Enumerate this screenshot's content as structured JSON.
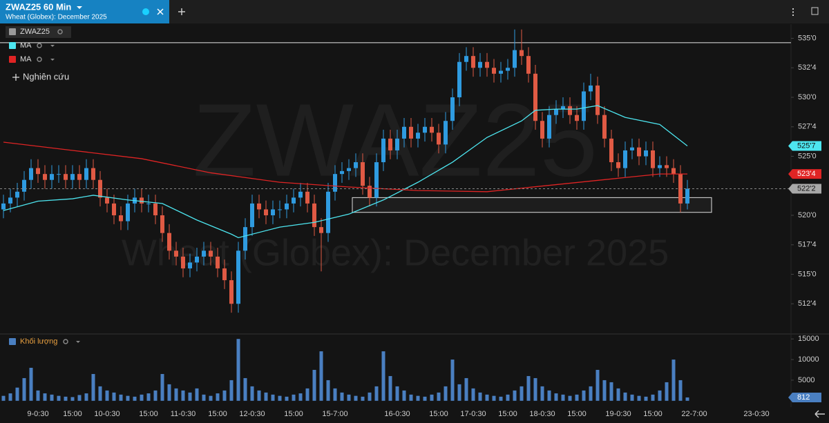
{
  "ui": {
    "tab_title": "ZWAZ25 60 Min",
    "tab_subtitle": "Wheat (Globex): December 2025",
    "study_button": "Nghiên cứu"
  },
  "chart_data": [
    {
      "type": "candlestick",
      "name": "ZWAZ25",
      "categories": [
        null,
        null,
        null,
        null,
        null,
        "9-0:30",
        null,
        null,
        null,
        null,
        "15:00",
        null,
        null,
        null,
        null,
        "10-0:30",
        null,
        null,
        null,
        null,
        null,
        "15:00",
        null,
        null,
        null,
        null,
        "11-0:30",
        null,
        null,
        null,
        null,
        "15:00",
        null,
        null,
        null,
        null,
        "12-0:30",
        null,
        null,
        null,
        null,
        null,
        "15:00",
        null,
        null,
        null,
        null,
        null,
        "15-7:00",
        null,
        null,
        null,
        null,
        null,
        null,
        null,
        null,
        "16-0:30",
        null,
        null,
        null,
        null,
        null,
        "15:00",
        null,
        null,
        null,
        null,
        "17-0:30",
        null,
        null,
        null,
        null,
        "15:00",
        null,
        null,
        null,
        null,
        "18-0:30",
        null,
        null,
        null,
        null,
        "15:00",
        null,
        null,
        null,
        null,
        null,
        "19-0:30",
        null,
        null,
        null,
        null,
        "15:00",
        null,
        null,
        null,
        null,
        null,
        "22-7:00",
        null,
        null,
        null,
        null,
        null,
        null,
        null,
        null,
        "23-0:30"
      ],
      "ylim": [
        510,
        536.2
      ],
      "yticks": [
        {
          "value": 535,
          "label": "535'0"
        },
        {
          "value": 532.5,
          "label": "532'4"
        },
        {
          "value": 530,
          "label": "530'0"
        },
        {
          "value": 527.5,
          "label": "527'4"
        },
        {
          "value": 525,
          "label": "525'0"
        },
        {
          "value": 520,
          "label": "520'0"
        },
        {
          "value": 517.5,
          "label": "517'4"
        },
        {
          "value": 515,
          "label": "515'0"
        },
        {
          "value": 512.5,
          "label": "512'4"
        }
      ],
      "grid": false,
      "series": [
        {
          "name": "ZWAZ25",
          "color": "#9a9a9a",
          "up_color": "#2f9be0",
          "down_color": "#e05a44",
          "open": [
            520.5,
            521,
            521.5,
            522,
            523,
            524,
            523.5,
            523,
            523.5,
            523.5,
            523,
            523.5,
            523,
            524,
            523,
            521.5,
            521,
            520,
            519.5,
            521,
            521.5,
            521,
            521,
            520,
            518.5,
            517,
            516.5,
            515.5,
            516,
            516.5,
            517,
            516.5,
            515.5,
            514.5,
            512.5,
            517,
            519,
            521,
            520.5,
            520,
            520.5,
            520.5,
            521,
            521.5,
            522,
            521,
            519,
            518.5,
            522,
            523.5,
            523.75,
            524,
            524.5,
            522.5,
            521.5,
            524.5,
            526.5,
            525.5,
            526.5,
            527.5,
            526.5,
            527,
            527.5,
            527,
            526,
            528,
            530,
            533,
            533.5,
            532.5,
            533,
            532.5,
            532,
            532.25,
            532.5,
            534,
            533.5,
            532,
            528,
            526.5,
            528.5,
            529,
            529.25,
            528.5,
            528,
            530.5,
            531,
            528.5,
            526.5,
            524.5,
            524,
            525.5,
            525.75,
            525,
            525.5,
            524,
            524.25,
            524,
            523.5,
            521,
            null,
            null,
            null,
            null,
            null,
            null,
            null,
            null,
            null,
            null
          ],
          "high": [
            521.75,
            522.25,
            522.75,
            523.75,
            524.75,
            524.75,
            524.25,
            524.25,
            524.25,
            524.25,
            524.25,
            524.25,
            524.75,
            524.75,
            523.75,
            522.25,
            521.75,
            520.75,
            521.75,
            522.25,
            522.25,
            521.75,
            521.75,
            520.75,
            519.25,
            517.75,
            517.25,
            516.75,
            517.25,
            517.75,
            517.75,
            517.25,
            516.25,
            515.25,
            517.75,
            519.75,
            521.75,
            521.75,
            521.25,
            521.25,
            521.25,
            521.75,
            522.25,
            522.75,
            522.75,
            521.75,
            519.75,
            522.75,
            524.25,
            524.5,
            524.75,
            525.25,
            525.25,
            523.25,
            525.25,
            527.25,
            527.25,
            527.25,
            528.25,
            528.25,
            527.75,
            528.25,
            528.25,
            527.75,
            528.75,
            530.75,
            533.75,
            534.25,
            534.25,
            533.75,
            533.75,
            533.25,
            533,
            533.25,
            535.75,
            535.75,
            534.25,
            532.75,
            528.75,
            529.25,
            529.75,
            530,
            530,
            529.25,
            531.25,
            532,
            531.75,
            529.25,
            527.25,
            525.25,
            526.25,
            526.5,
            526.5,
            526.25,
            526.25,
            525,
            525,
            524.75,
            524.25,
            523,
            null,
            null,
            null,
            null,
            null,
            null,
            null,
            null,
            null,
            null
          ],
          "low": [
            519.75,
            520.25,
            520.75,
            521.25,
            522.25,
            522.75,
            522.25,
            522.25,
            522.75,
            522.25,
            522.25,
            522.25,
            522.25,
            522.25,
            520.75,
            520.25,
            519.25,
            518.75,
            518.75,
            520.25,
            520.25,
            520.25,
            519.25,
            517.75,
            516.25,
            515.75,
            514.75,
            514.75,
            515.25,
            515.75,
            515.75,
            514.75,
            513.75,
            511.75,
            511.75,
            516.25,
            518.25,
            519.75,
            519.25,
            519.25,
            519.75,
            519.75,
            520.25,
            520.75,
            520.25,
            518.25,
            515.25,
            517.75,
            521.25,
            522.75,
            523,
            523.25,
            521.75,
            520.75,
            520.75,
            523.75,
            524.75,
            524.75,
            525.75,
            525.75,
            525.75,
            526.25,
            526.25,
            525.25,
            525.25,
            527.25,
            529.25,
            532.25,
            531.75,
            531.75,
            531.75,
            531.25,
            531.25,
            531.5,
            531.75,
            532.75,
            531.25,
            527.25,
            525.75,
            525.75,
            527.75,
            528.25,
            527.75,
            527.25,
            527.25,
            529.75,
            527.75,
            525.75,
            523.75,
            523.25,
            523.25,
            524.75,
            524.25,
            524.25,
            523.25,
            523.25,
            523.25,
            522.75,
            520.25,
            520.5,
            null,
            null,
            null,
            null,
            null,
            null,
            null,
            null,
            null,
            null
          ],
          "close": [
            521,
            521.5,
            522,
            523,
            524,
            523.5,
            523,
            523.5,
            523.5,
            523,
            523.5,
            523,
            524,
            523,
            521.5,
            521,
            520,
            519.5,
            521,
            521.5,
            521,
            521,
            520,
            518.5,
            517,
            516.5,
            515.5,
            516,
            516.5,
            517,
            516.5,
            515.5,
            514.5,
            512.5,
            517,
            519,
            521,
            520.5,
            520,
            520.5,
            520.5,
            521,
            521.5,
            522,
            521,
            519,
            518.5,
            522,
            523.5,
            523.75,
            524,
            524.5,
            522.5,
            521.5,
            524.5,
            526.5,
            525.5,
            526.5,
            527.5,
            526.5,
            527,
            527.5,
            527,
            526,
            528,
            530,
            533,
            533.5,
            532.5,
            533,
            532.5,
            532,
            532.25,
            532.5,
            534,
            533.5,
            532,
            528,
            526.5,
            528.5,
            529,
            529.25,
            528.5,
            528,
            530.5,
            531,
            528.5,
            526.5,
            524.5,
            524,
            525.5,
            525.75,
            525,
            525.5,
            524,
            524.25,
            524,
            523.5,
            521,
            522.25,
            null,
            null,
            null,
            null,
            null,
            null,
            null,
            null,
            null,
            null
          ]
        },
        {
          "name": "MA",
          "color": "#4de6f0",
          "x": [
            0,
            5,
            10,
            13,
            18,
            23,
            28,
            33,
            34,
            40,
            45,
            50,
            55,
            60,
            65,
            70,
            75,
            77,
            80,
            83,
            86,
            90,
            95,
            99
          ],
          "values": [
            520.4,
            521.2,
            521.4,
            521.7,
            521.3,
            521,
            519.6,
            518.4,
            518.1,
            519,
            519.4,
            520.1,
            521.3,
            522.8,
            524.5,
            526.6,
            528,
            528.9,
            529,
            529,
            529.3,
            528.3,
            527.7,
            525.875
          ]
        },
        {
          "name": "MA",
          "color": "#e02424",
          "x": [
            0,
            10,
            20,
            30,
            40,
            50,
            60,
            70,
            80,
            90,
            95,
            99
          ],
          "values": [
            526.2,
            525.5,
            524.8,
            523.6,
            522.8,
            522.4,
            522.1,
            522,
            522.6,
            523.2,
            523.5,
            523.5
          ]
        }
      ],
      "hline": 534.625,
      "box": {
        "x": [
          51,
          103
        ],
        "y": [
          520.25,
          521.5
        ]
      },
      "price_labels": [
        {
          "value": 525.875,
          "label": "525'7",
          "color": "#4de6f0"
        },
        {
          "value": 523.5,
          "label": "523'4",
          "color": "#e02424"
        },
        {
          "value": 522.25,
          "label": "522'2",
          "color": "#a8a8a8"
        }
      ]
    },
    {
      "type": "bar",
      "name": "Khối lượng",
      "color": "#4a7fc1",
      "ylim": [
        -700,
        15700
      ],
      "yticks": [
        5000,
        10000,
        15000
      ],
      "values": [
        1200,
        1800,
        3200,
        5500,
        8000,
        2500,
        1800,
        1500,
        1200,
        1000,
        900,
        1400,
        1800,
        6500,
        3500,
        2500,
        2000,
        1500,
        1200,
        1000,
        1500,
        1800,
        2500,
        6500,
        4000,
        3000,
        2500,
        2000,
        3000,
        1500,
        1200,
        1800,
        2500,
        5000,
        15000,
        5500,
        3500,
        2500,
        2000,
        1500,
        1200,
        1000,
        1500,
        1800,
        3000,
        7500,
        12000,
        5000,
        3000,
        2000,
        1500,
        1200,
        1000,
        2000,
        3500,
        12000,
        6000,
        3500,
        2500,
        1500,
        1200,
        1000,
        1500,
        2000,
        3500,
        10000,
        4000,
        5500,
        3000,
        2000,
        1500,
        1200,
        1000,
        1500,
        2500,
        3500,
        6000,
        5500,
        3500,
        2500,
        1800,
        1500,
        1200,
        1500,
        2500,
        3500,
        7500,
        5000,
        4500,
        3000,
        2000,
        1500,
        1200,
        1000,
        1500,
        2500,
        4500,
        10000,
        5000,
        812,
        null,
        null,
        null,
        null,
        null,
        null,
        null,
        null,
        null,
        null
      ]
    }
  ]
}
